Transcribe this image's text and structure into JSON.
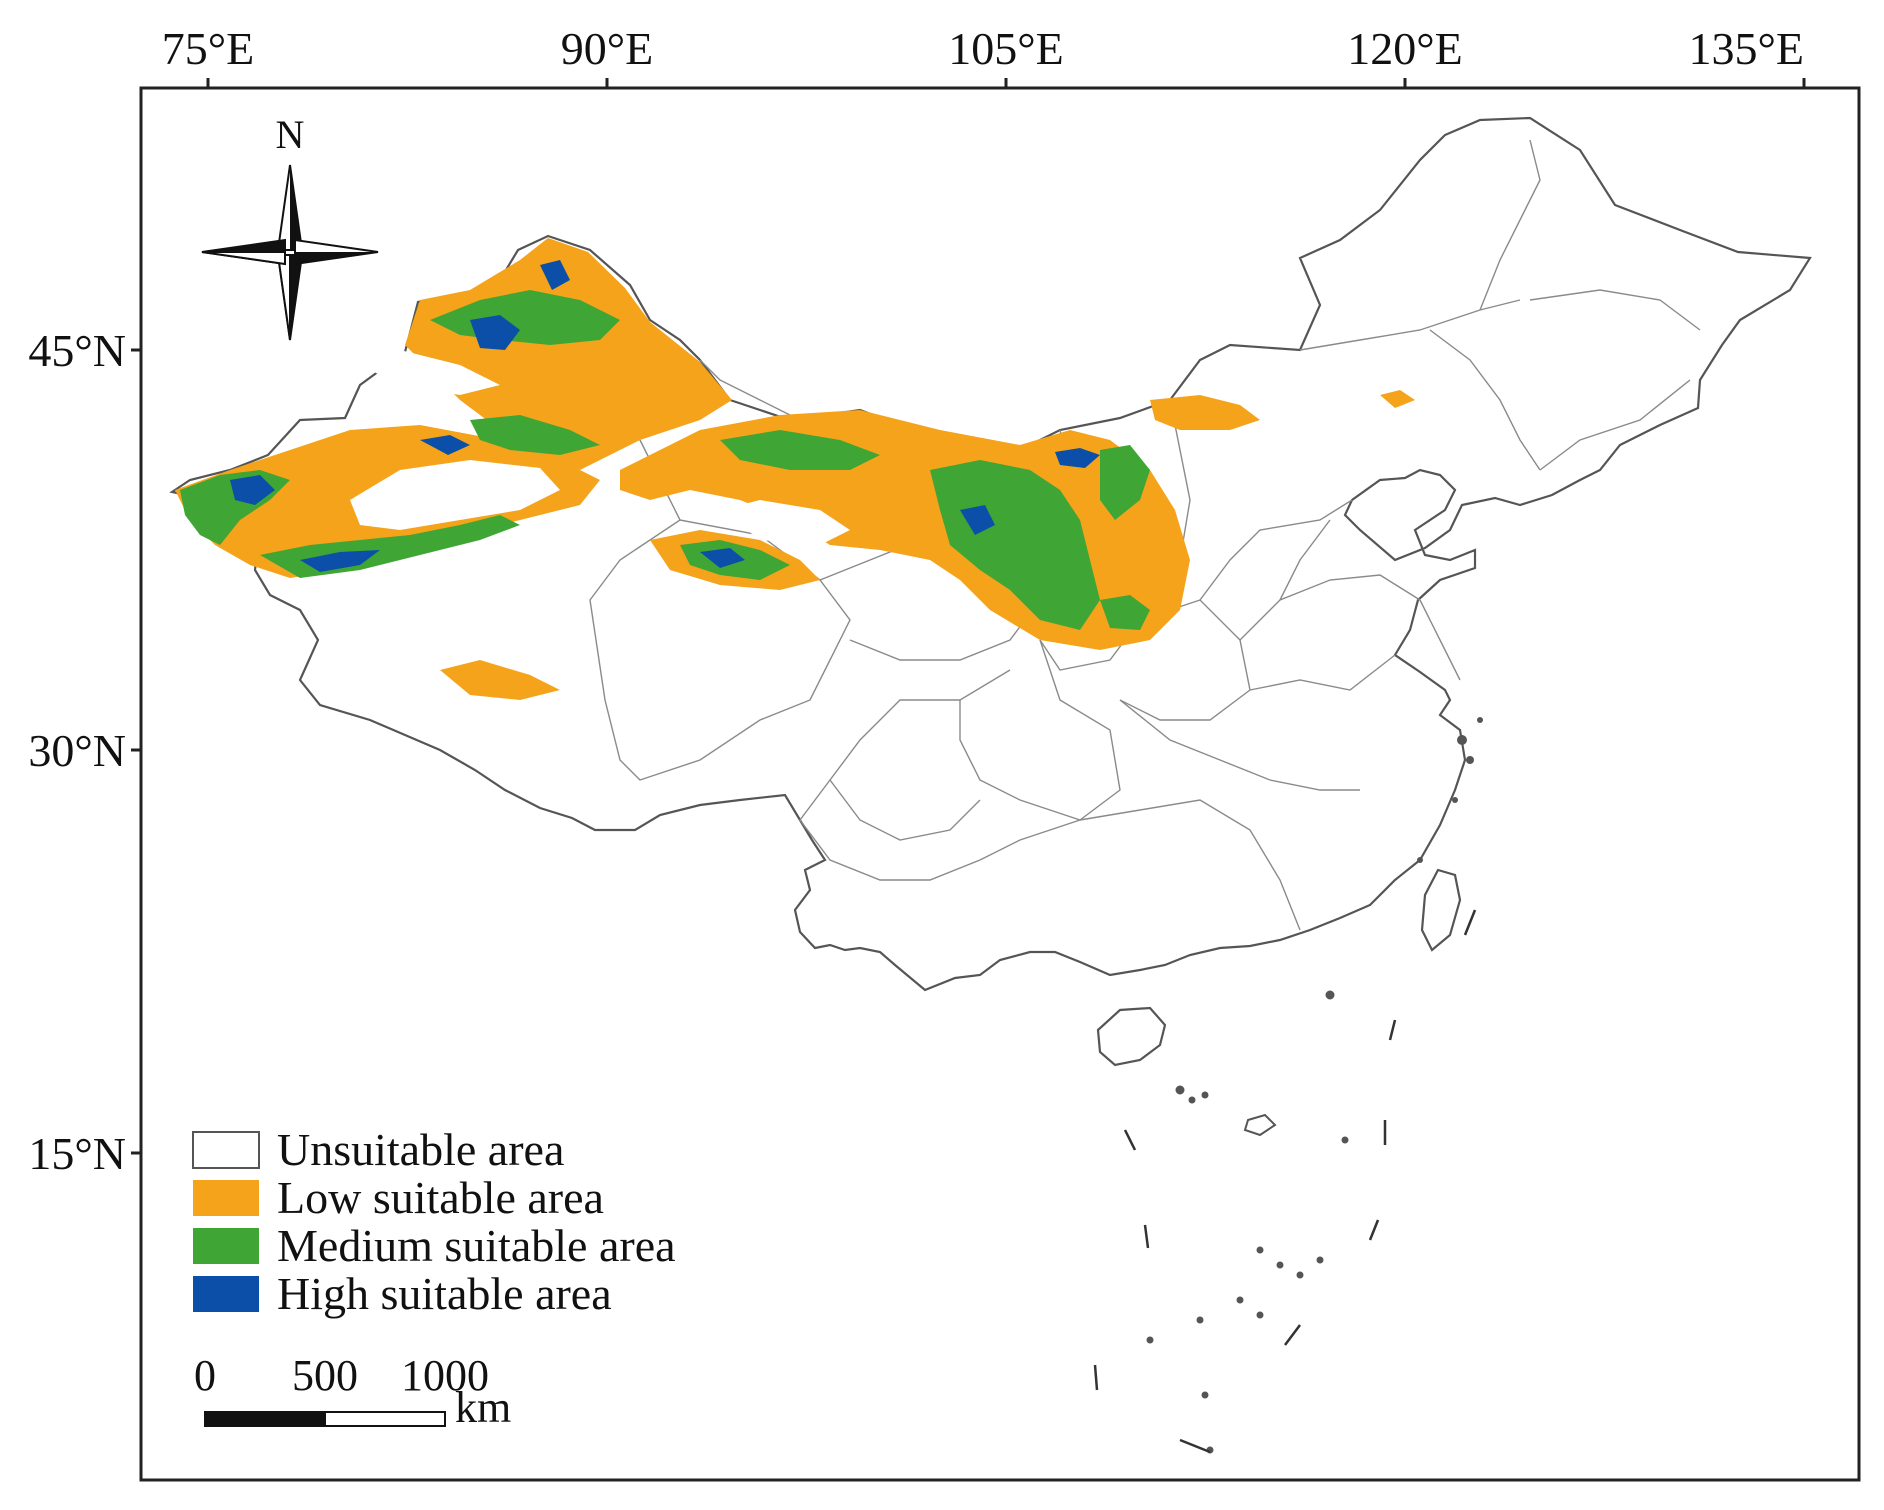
{
  "map": {
    "longitude_labels": [
      "75°E",
      "90°E",
      "105°E",
      "120°E",
      "135°E"
    ],
    "latitude_labels": [
      "45°N",
      "30°N",
      "15°N"
    ],
    "north_label": "N",
    "legend": [
      {
        "label": "Unsuitable area",
        "color": "#ffffff"
      },
      {
        "label": "Low suitable area",
        "color": "#f5a31a"
      },
      {
        "label": "Medium suitable area",
        "color": "#3fa535"
      },
      {
        "label": "High suitable area",
        "color": "#0b4fa8"
      }
    ],
    "scale_bar": {
      "ticks": [
        "0",
        "500",
        "1000"
      ],
      "unit": "km"
    },
    "colors": {
      "low": "#f5a31a",
      "medium": "#3fa535",
      "high": "#0b4fa8",
      "border": "#555555"
    }
  }
}
